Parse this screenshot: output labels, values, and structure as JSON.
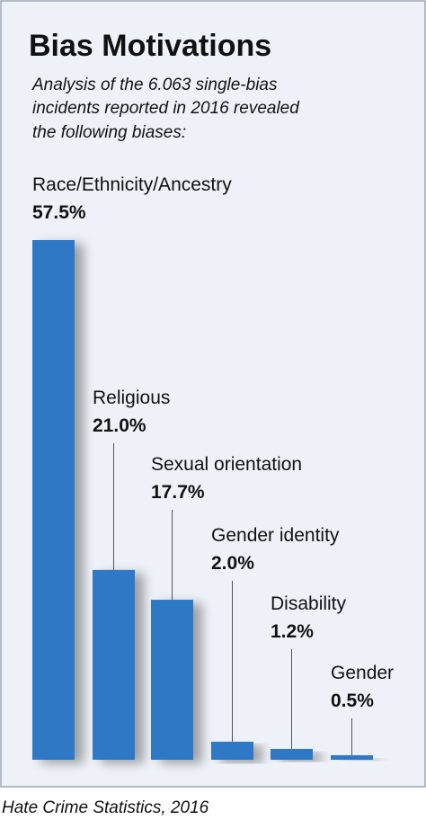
{
  "chart_data": {
    "type": "bar",
    "title": "Bias Motivations",
    "subtitle": [
      "Analysis of the 6.063 single-bias",
      "incidents reported in 2016 revealed",
      "the following biases:"
    ],
    "categories": [
      "Race/Ethnicity/Ancestry",
      "Religious",
      "Sexual orientation",
      "Gender identity",
      "Disability",
      "Gender"
    ],
    "values": [
      57.5,
      21.0,
      17.7,
      2.0,
      1.2,
      0.5
    ],
    "value_labels": [
      "57.5%",
      "21.0%",
      "17.7%",
      "2.0%",
      "1.2%",
      "0.5%"
    ],
    "color": "#2f78c6",
    "source": "Hate Crime Statistics, 2016"
  }
}
